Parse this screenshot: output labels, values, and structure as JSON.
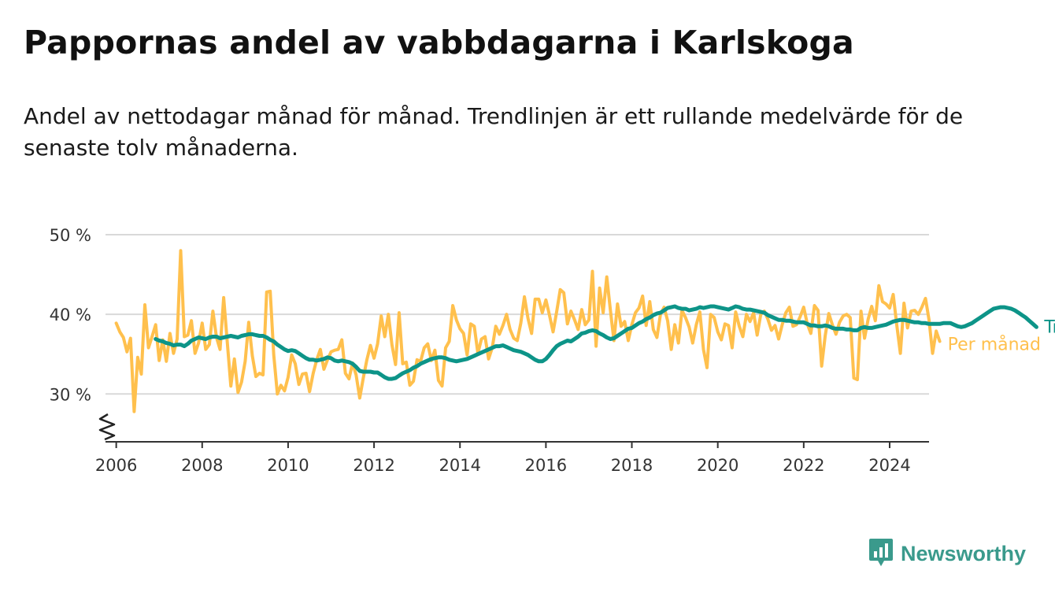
{
  "header": {
    "title": "Pappornas andel av vabbdagarna i Karlskoga",
    "subtitle": "Andel av nettodagar månad för månad. Trendlinjen är ett rullande medelvärde för de senaste tolv månaderna."
  },
  "brand": {
    "name": "Newsworthy",
    "color": "#3a9a8c"
  },
  "chart_data": {
    "type": "line",
    "x_type": "date",
    "xlim": [
      "2005-10",
      "2024-12"
    ],
    "ylim": [
      24,
      50
    ],
    "y_ticks": [
      30,
      40,
      50
    ],
    "y_tick_labels": [
      "30 %",
      "40 %",
      "50 %"
    ],
    "x_ticks": [
      "2006",
      "2008",
      "2010",
      "2012",
      "2014",
      "2016",
      "2018",
      "2020",
      "2022",
      "2024"
    ],
    "grid": true,
    "axis_break": true,
    "legend_placement": "end-of-line labels (right)",
    "series": [
      {
        "name": "Per månad",
        "color": "#ffc04d",
        "start": "2006-01",
        "values": [
          38.9,
          37.8,
          37.1,
          35.3,
          37.0,
          27.8,
          34.6,
          32.5,
          41.2,
          35.8,
          37.2,
          38.7,
          34.2,
          36.8,
          34.1,
          37.6,
          35.1,
          36.9,
          48.0,
          37.2,
          37.4,
          39.2,
          35.1,
          36.4,
          38.9,
          35.6,
          36.2,
          40.4,
          37.1,
          35.6,
          42.1,
          36.6,
          31.0,
          34.4,
          30.2,
          31.5,
          34.1,
          39.0,
          34.8,
          32.2,
          32.6,
          32.4,
          42.8,
          42.9,
          34.9,
          30.0,
          31.1,
          30.4,
          32.1,
          34.9,
          33.8,
          31.2,
          32.5,
          32.6,
          30.3,
          32.6,
          34.3,
          35.6,
          33.1,
          34.3,
          35.3,
          35.5,
          35.6,
          36.8,
          32.6,
          31.9,
          33.9,
          32.4,
          29.5,
          32.0,
          34.3,
          36.1,
          34.5,
          36.3,
          39.8,
          37.2,
          40.0,
          36.2,
          33.7,
          40.2,
          33.8,
          34.0,
          31.1,
          31.6,
          34.3,
          34.1,
          35.8,
          36.3,
          34.2,
          35.5,
          31.7,
          31.0,
          35.8,
          36.6,
          41.1,
          39.3,
          38.2,
          37.6,
          34.9,
          38.8,
          38.5,
          35.1,
          36.9,
          37.2,
          34.4,
          35.8,
          38.5,
          37.5,
          38.6,
          40.0,
          38.1,
          37.0,
          36.7,
          38.9,
          42.2,
          39.5,
          37.6,
          41.9,
          41.9,
          40.2,
          41.8,
          39.9,
          37.8,
          40.3,
          43.1,
          42.7,
          38.8,
          40.4,
          39.3,
          38.1,
          40.6,
          38.7,
          39.3,
          45.4,
          36.0,
          43.3,
          40.2,
          44.7,
          40.6,
          36.7,
          41.3,
          38.5,
          39.1,
          36.7,
          38.7,
          40.2,
          40.8,
          42.3,
          38.6,
          41.6,
          38.1,
          37.1,
          40.0,
          40.9,
          39.2,
          35.6,
          38.7,
          36.4,
          40.5,
          39.6,
          38.4,
          36.4,
          38.7,
          40.3,
          35.6,
          33.3,
          40.0,
          39.6,
          37.8,
          36.8,
          38.8,
          38.6,
          35.8,
          40.3,
          38.5,
          37.2,
          40.0,
          39.1,
          40.2,
          37.4,
          40.0,
          40.4,
          39.4,
          38.0,
          38.6,
          36.9,
          38.7,
          40.2,
          40.9,
          38.5,
          38.7,
          39.7,
          40.9,
          38.8,
          37.6,
          41.1,
          40.5,
          33.5,
          37.3,
          40.1,
          38.7,
          37.5,
          39.0,
          39.8,
          40.0,
          39.6,
          32.0,
          31.8,
          40.4,
          37.0,
          39.4,
          41.0,
          39.2,
          43.6,
          41.6,
          41.3,
          40.8,
          42.5,
          38.6,
          35.1,
          41.4,
          38.3,
          40.4,
          40.5,
          40.0,
          40.9,
          42.0,
          39.3,
          35.1,
          37.9,
          36.6
        ]
      },
      {
        "name": "Trend",
        "color": "#0d9488",
        "start": "2006-12",
        "values": [
          36.9,
          36.7,
          36.6,
          36.4,
          36.3,
          36.1,
          36.2,
          36.2,
          36.0,
          36.3,
          36.7,
          36.9,
          37.1,
          37.0,
          36.9,
          37.1,
          37.2,
          37.2,
          37.0,
          37.1,
          37.2,
          37.3,
          37.2,
          37.1,
          37.3,
          37.4,
          37.5,
          37.5,
          37.4,
          37.3,
          37.3,
          37.1,
          36.8,
          36.6,
          36.2,
          35.9,
          35.6,
          35.4,
          35.5,
          35.4,
          35.1,
          34.8,
          34.5,
          34.3,
          34.3,
          34.2,
          34.3,
          34.4,
          34.6,
          34.5,
          34.2,
          34.1,
          34.2,
          34.1,
          34.0,
          33.8,
          33.4,
          32.9,
          32.8,
          32.8,
          32.8,
          32.7,
          32.7,
          32.4,
          32.1,
          31.9,
          31.9,
          32.0,
          32.3,
          32.6,
          32.8,
          33.0,
          33.3,
          33.5,
          33.8,
          34.0,
          34.2,
          34.4,
          34.5,
          34.6,
          34.6,
          34.5,
          34.3,
          34.2,
          34.1,
          34.2,
          34.3,
          34.4,
          34.6,
          34.8,
          35.0,
          35.2,
          35.4,
          35.6,
          35.8,
          36.0,
          36.0,
          36.1,
          35.9,
          35.7,
          35.5,
          35.4,
          35.3,
          35.1,
          34.9,
          34.6,
          34.3,
          34.1,
          34.1,
          34.4,
          34.9,
          35.5,
          36.0,
          36.3,
          36.5,
          36.7,
          36.6,
          36.9,
          37.2,
          37.6,
          37.7,
          37.9,
          38.0,
          37.9,
          37.6,
          37.4,
          37.1,
          36.9,
          37.0,
          37.3,
          37.6,
          37.9,
          38.2,
          38.3,
          38.6,
          38.9,
          39.1,
          39.4,
          39.6,
          39.9,
          40.1,
          40.2,
          40.5,
          40.8,
          40.9,
          41.0,
          40.8,
          40.7,
          40.7,
          40.5,
          40.6,
          40.7,
          40.9,
          40.8,
          40.9,
          41.0,
          41.0,
          40.9,
          40.8,
          40.7,
          40.6,
          40.8,
          41.0,
          40.9,
          40.7,
          40.6,
          40.6,
          40.5,
          40.4,
          40.3,
          40.2,
          39.9,
          39.7,
          39.5,
          39.3,
          39.3,
          39.2,
          39.2,
          39.1,
          39.0,
          39.0,
          39.0,
          38.8,
          38.6,
          38.6,
          38.5,
          38.5,
          38.6,
          38.5,
          38.3,
          38.2,
          38.2,
          38.2,
          38.1,
          38.1,
          38.0,
          38.0,
          38.3,
          38.4,
          38.3,
          38.3,
          38.4,
          38.5,
          38.6,
          38.7,
          38.9,
          39.1,
          39.2,
          39.3,
          39.3,
          39.2,
          39.1,
          39.0,
          39.0,
          38.9,
          38.9,
          38.8,
          38.8,
          38.8,
          38.8,
          38.9,
          38.9,
          38.9,
          38.7,
          38.5,
          38.4,
          38.5,
          38.7,
          38.9,
          39.2,
          39.5,
          39.8,
          40.1,
          40.4,
          40.7,
          40.8,
          40.9,
          40.9,
          40.8,
          40.7,
          40.5,
          40.2,
          39.9,
          39.6,
          39.2,
          38.8,
          38.4
        ]
      }
    ]
  }
}
